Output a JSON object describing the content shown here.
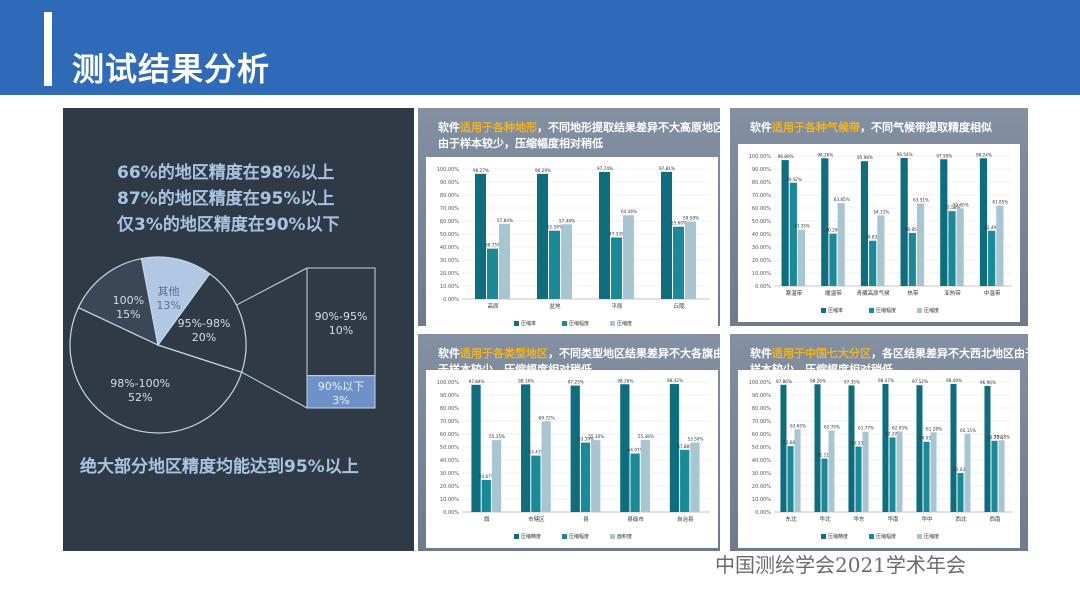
{
  "page_title": "测试结果分析",
  "stats": [
    "66%的地区精度在98%以上",
    "87%的地区精度在95%以上",
    "仅3%的地区精度在90%以下"
  ],
  "conclusion": "绝大部分地区精度均能达到95%以上",
  "footer": "中国测绘学会2021学术年会",
  "colors": {
    "header": "#2f6ab8",
    "dark_panel": "#303a46",
    "accent": "#f2b320",
    "series1": "#0e6e7f",
    "series2": "#1a8a98",
    "series3": "#a8c6d2"
  },
  "chart_data": [
    {
      "type": "pie",
      "slices": [
        {
          "label": "98%-100%",
          "pct_label": "52%",
          "value": 52
        },
        {
          "label": "100%",
          "pct_label": "15%",
          "value": 15
        },
        {
          "label": "其他",
          "pct_label": "13%",
          "value": 13
        },
        {
          "label": "95%-98%",
          "pct_label": "20%",
          "value": 20
        }
      ],
      "breakout": [
        {
          "label": "90%-95%",
          "pct_label": "10%",
          "value": 10
        },
        {
          "label": "90%以下",
          "pct_label": "3%",
          "value": 3
        }
      ]
    },
    {
      "type": "bar",
      "title_pre": "软件",
      "title_hl": "适用于各种地形",
      "title_post": "，不同地形提取结果差异不大高原地区由于样本较少，压缩幅度相对稍低",
      "categories": [
        "高原",
        "盆地",
        "平原",
        "丘陵"
      ],
      "series": [
        {
          "name": "压缩率",
          "values": [
            96.27,
            96.29,
            97.74,
            97.81
          ],
          "labels": [
            "96.27%",
            "96.29%",
            "97.74%",
            "97.81%"
          ]
        },
        {
          "name": "压缩幅度",
          "values": [
            38.75,
            52.56,
            47.33,
            55.6
          ],
          "labels": [
            "38.75%",
            "52.56%",
            "47.33%",
            "55.60%"
          ]
        },
        {
          "name": "压缩度",
          "values": [
            57.84,
            57.48,
            64.46,
            59.58
          ],
          "labels": [
            "57.84%",
            "57.48%",
            "64.46%",
            "59.58%"
          ]
        }
      ],
      "yticks": [
        "100.00%",
        "90.00%",
        "80.00%",
        "70.00%",
        "60.00%",
        "50.00%",
        "40.00%",
        "30.00%",
        "20.00%",
        "10.00%",
        "0.00%"
      ],
      "ylim": [
        0,
        100
      ]
    },
    {
      "type": "bar",
      "title_pre": "软件",
      "title_hl": "适用于各种气候带",
      "title_post": "，不同气候带提取精度相似",
      "categories": [
        "寒温带",
        "暖温带",
        "青藏高原气候",
        "热带",
        "亚热带",
        "中温带"
      ],
      "series": [
        {
          "name": "压缩率",
          "values": [
            96.86,
            98.26,
            95.98,
            98.54,
            97.5,
            98.24
          ],
          "labels": [
            "96.86%",
            "98.26%",
            "95.98%",
            "98.54%",
            "97.50%",
            "98.24%"
          ]
        },
        {
          "name": "压缩幅度",
          "values": [
            79.42,
            40.29,
            34.83,
            40.85,
            57.58,
            42.49
          ],
          "labels": [
            "79.42%",
            "40.29%",
            "34.83%",
            "40.85%",
            "57.58%",
            "42.49%"
          ]
        },
        {
          "name": "压缩度",
          "values": [
            43.35,
            63.85,
            54.31,
            63.51,
            59.6,
            61.85
          ],
          "labels": [
            "43.35%",
            "63.85%",
            "54.31%",
            "63.51%",
            "59.60%",
            "61.85%"
          ]
        }
      ],
      "yticks": [
        "100.00%",
        "90.00%",
        "80.00%",
        "70.00%",
        "60.00%",
        "50.00%",
        "40.00%",
        "30.00%",
        "20.00%",
        "10.00%",
        "0.00%"
      ],
      "ylim": [
        0,
        100
      ]
    },
    {
      "type": "bar",
      "title_pre": "软件",
      "title_hl": "适用于各类型地区",
      "title_post": "，不同类型地区结果差异不大各旗由于样本较少，压缩幅度相对稍低",
      "categories": [
        "旗",
        "市辖区",
        "县",
        "县级市",
        "自治县"
      ],
      "series": [
        {
          "name": "压缩精度",
          "values": [
            97.84,
            98.16,
            97.25,
            98.26,
            98.42
          ],
          "labels": [
            "97.84%",
            "98.16%",
            "97.25%",
            "98.26%",
            "98.42%"
          ]
        },
        {
          "name": "压缩幅度",
          "values": [
            24.67,
            43.41,
            53.39,
            44.97,
            47.88
          ],
          "labels": [
            "24.67%",
            "43.41%",
            "53.39%",
            "44.97%",
            "47.88%"
          ]
        },
        {
          "name": "面积度",
          "values": [
            55.35,
            69.72,
            55.3,
            55.38,
            53.5
          ],
          "labels": [
            "55.35%",
            "69.72%",
            "55.30%",
            "55.38%",
            "53.50%"
          ]
        }
      ],
      "yticks": [
        "100.00%",
        "90.00%",
        "80.00%",
        "70.00%",
        "60.00%",
        "50.00%",
        "40.00%",
        "30.00%",
        "20.00%",
        "10.00%",
        "0.00%"
      ],
      "ylim": [
        0,
        100
      ]
    },
    {
      "type": "bar",
      "title_pre": "软件",
      "title_hl": "适用于中国七大分区",
      "title_post": "，各区结果差异不大西北地区由于样本较少，压缩幅度相对稍低",
      "categories": [
        "东北",
        "华北",
        "华东",
        "华南",
        "华中",
        "西北",
        "西南"
      ],
      "series": [
        {
          "name": "压缩精度",
          "values": [
            97.86,
            98.26,
            97.35,
            98.47,
            97.52,
            98.49,
            96.96
          ],
          "labels": [
            "97.86%",
            "98.26%",
            "97.35%",
            "98.47%",
            "97.52%",
            "98.49%",
            "96.96%"
          ]
        },
        {
          "name": "压缩幅度",
          "values": [
            50.68,
            41.11,
            50.33,
            57.37,
            54.05,
            30.03,
            54.77
          ],
          "labels": [
            "50.68%",
            "41.11%",
            "50.33%",
            "57.37%",
            "54.05%",
            "30.03%",
            "54.77%"
          ]
        },
        {
          "name": "压缩度",
          "values": [
            63.65,
            62.7,
            61.77,
            62.05,
            61.28,
            60.15,
            55.18
          ],
          "labels": [
            "63.65%",
            "62.70%",
            "61.77%",
            "62.05%",
            "61.28%",
            "60.15%",
            "55.18%"
          ]
        }
      ],
      "yticks": [
        "100.00%",
        "90.00%",
        "80.00%",
        "70.00%",
        "60.00%",
        "50.00%",
        "40.00%",
        "30.00%",
        "20.00%",
        "10.00%",
        "0.00%"
      ],
      "ylim": [
        0,
        100
      ]
    }
  ]
}
